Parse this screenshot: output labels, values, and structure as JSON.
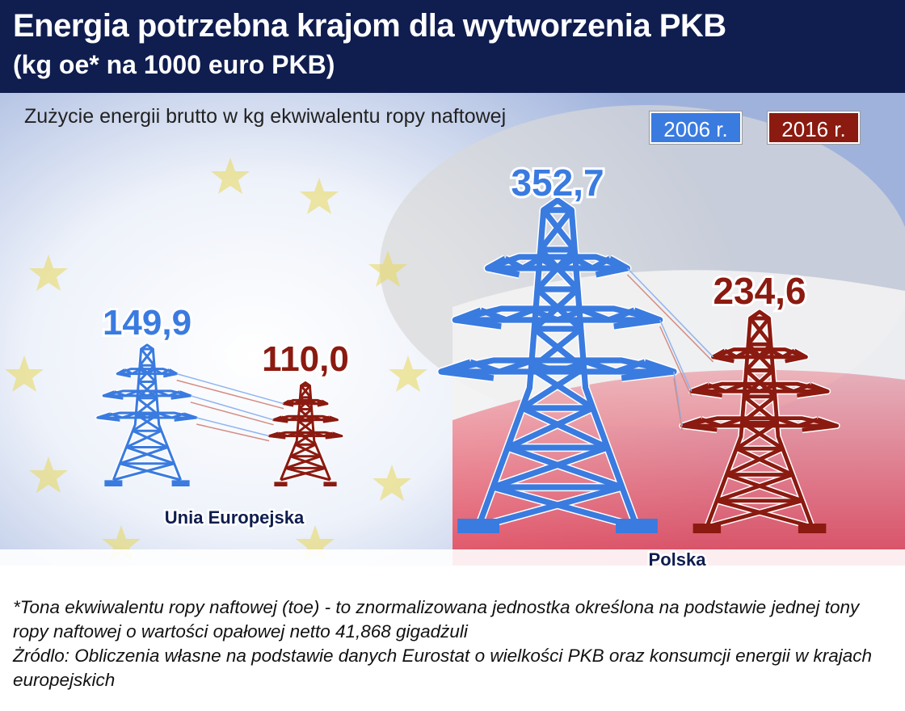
{
  "header": {
    "title": "Energia potrzebna krajom dla wytworzenia PKB",
    "subtitle": "(kg oe* na 1000 euro PKB)"
  },
  "footer": {
    "note": "*Tona ekwiwalentu ropy naftowej (toe) - to znormalizowana jednostka określona na podstawie jednej tony ropy naftowej o wartości opałowej netto 41,868 gigadżuli",
    "source": "Żródlo: Obliczenia własne na podstawie danych Eurostat o wielkości PKB oraz konsumcji energii w krajach europejskich"
  },
  "colors": {
    "2006": "#3a7be0",
    "2016": "#8b1a10",
    "header": "#0f1d4f"
  },
  "chart_data": {
    "type": "bar",
    "title": "Energia potrzebna krajom dla wytworzenia PKB",
    "subtitle": "Zużycie energii brutto w kg ekwiwalentu ropy naftowej",
    "categories": [
      "Unia Europejska",
      "Polska"
    ],
    "series": [
      {
        "name": "2006 r.",
        "values": [
          149.9,
          352.7
        ],
        "labels": [
          "149,9",
          "352,7"
        ]
      },
      {
        "name": "2016 r.",
        "values": [
          110.0,
          234.6
        ],
        "labels": [
          "110,0",
          "234,6"
        ]
      }
    ],
    "legend": "top-right",
    "grid": false
  }
}
